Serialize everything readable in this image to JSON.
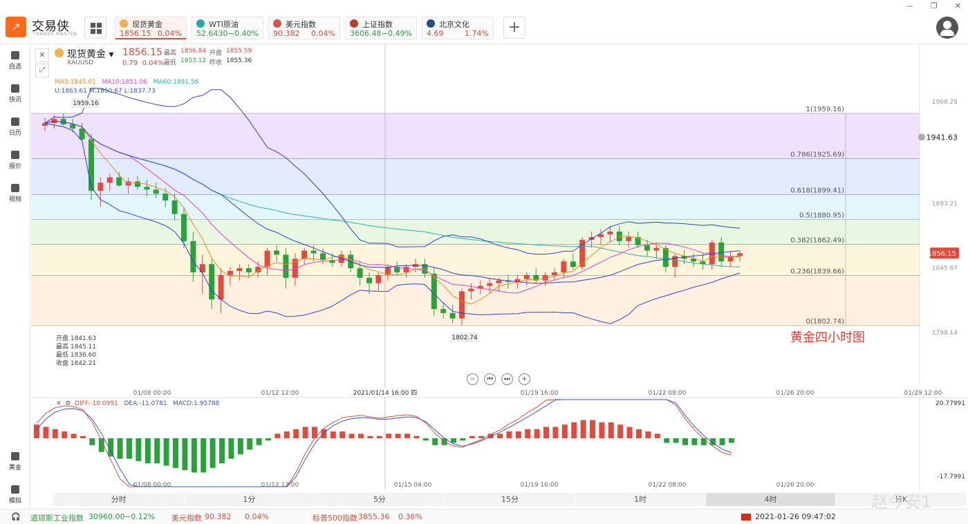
{
  "app": {
    "logo_text": "交易侠",
    "logo_sub": "TRADER MASTER"
  },
  "quotes": [
    {
      "name": "现货黄金",
      "price": "1856.15",
      "change": "0.04%",
      "dir": "up",
      "color": "#f2b24a"
    },
    {
      "name": "WTI原油",
      "price": "52.6430",
      "change": "−0.40%",
      "dir": "dn",
      "color": "#2aa8a0"
    },
    {
      "name": "美元指数",
      "price": "90.382",
      "change": "0.04%",
      "dir": "up",
      "color": "#d9534f"
    },
    {
      "name": "上证指数",
      "price": "3606.48",
      "change": "−0.49%",
      "dir": "dn",
      "color": "#c0392b"
    },
    {
      "name": "北京文化",
      "price": "4.69",
      "change": "1.74%",
      "dir": "up",
      "color": "#2c4a8a"
    }
  ],
  "sidebar": {
    "items": [
      "自选",
      "快讯",
      "日历",
      "报价",
      "视频"
    ],
    "bottom": [
      "黄金",
      "模拟"
    ]
  },
  "header": {
    "name": "现货黄金",
    "symbol": "XAUUSD",
    "last": "1856.15",
    "change": "0.79",
    "change_pct": "0.04%",
    "high_label": "最高",
    "high": "1856.84",
    "open_label": "开盘",
    "open": "1855.59",
    "low_label": "最低",
    "low": "1853.12",
    "prev_label": "昨收",
    "prev": "1855.36"
  },
  "indicators": {
    "ma5": "MA5:1845.01",
    "ma10": "MA10:1851.06",
    "ma60": "MA60:1891.56",
    "boll": "U:1863.61   M:1850.67   L:1837.73"
  },
  "ohlc_box": {
    "open": "开盘 1841.63",
    "high": "最高 1845.11",
    "low": "最低 1836.60",
    "close": "收盘 1842.21"
  },
  "macd": {
    "diff": "DIFF:-10.0991",
    "dea": "DEA:-11.0781",
    "macd": "MACD:1.95788"
  },
  "annotation": "黄金四小时图",
  "periods": [
    "分时",
    "1分",
    "5分",
    "15分",
    "1时",
    "4时",
    "日K"
  ],
  "selected_period": "4时",
  "status": {
    "dji_name": "道琼斯工业指数",
    "dji_price": "30960.00",
    "dji_change": "−0.12%",
    "usd_name": "美元指数",
    "usd_price": "90.382",
    "usd_change": "0.04%",
    "sp_name": "标普500指数",
    "sp_price": "3855.36",
    "sp_change": "0.36%",
    "datetime": "2021-01-26 09:47:02"
  },
  "watermark": "赵今安1",
  "chart_data": {
    "type": "candlestick",
    "y_axis_labels": [
      "1968.28",
      "1941.63",
      "1893.21",
      "1856.15",
      "1845.67",
      "1798.14"
    ],
    "macd_axis_labels": [
      "20.77991",
      "-17.7991"
    ],
    "crosshair_label": "2021/01/14 16:00 四",
    "x_labels": [
      "01/08 00:00",
      "01/12 12:00",
      "01/19 16:00",
      "01/22 08:00",
      "01/26 20:00",
      "01/29 12:00"
    ],
    "macd_x_labels": [
      "01/08 00:00",
      "01/12 12:00",
      "01/15 04:00",
      "01/19 16:00",
      "01/22 08:00",
      "01/26 20:00"
    ],
    "fib_levels": [
      {
        "label": "1(1959.16)",
        "value": 1959.16
      },
      {
        "label": "0.786(1925.69)",
        "value": 1925.69
      },
      {
        "label": "0.618(1899.41)",
        "value": 1899.41
      },
      {
        "label": "0.5(1880.95)",
        "value": 1880.95
      },
      {
        "label": "0.382(1862.49)",
        "value": 1862.49
      },
      {
        "label": "0.236(1839.66)",
        "value": 1839.66
      },
      {
        "label": "0(1802.74)",
        "value": 1802.74
      }
    ],
    "peak_label": "1959.16",
    "trough_label": "1802.74",
    "alert_price": "1941.63",
    "candles": [
      [
        1950,
        1956,
        1946,
        1952
      ],
      [
        1952,
        1958,
        1948,
        1955
      ],
      [
        1955,
        1959,
        1950,
        1951
      ],
      [
        1951,
        1955,
        1945,
        1948
      ],
      [
        1948,
        1952,
        1938,
        1940
      ],
      [
        1940,
        1944,
        1895,
        1902
      ],
      [
        1902,
        1912,
        1890,
        1908
      ],
      [
        1908,
        1915,
        1902,
        1912
      ],
      [
        1912,
        1916,
        1905,
        1906
      ],
      [
        1906,
        1912,
        1900,
        1909
      ],
      [
        1909,
        1913,
        1903,
        1905
      ],
      [
        1905,
        1910,
        1898,
        1903
      ],
      [
        1903,
        1908,
        1897,
        1900
      ],
      [
        1900,
        1904,
        1890,
        1895
      ],
      [
        1895,
        1900,
        1880,
        1885
      ],
      [
        1885,
        1890,
        1860,
        1865
      ],
      [
        1865,
        1872,
        1835,
        1842
      ],
      [
        1842,
        1855,
        1826,
        1848
      ],
      [
        1848,
        1852,
        1815,
        1822
      ],
      [
        1822,
        1845,
        1812,
        1840
      ],
      [
        1840,
        1846,
        1832,
        1843
      ],
      [
        1843,
        1848,
        1836,
        1845
      ],
      [
        1845,
        1848,
        1838,
        1842
      ],
      [
        1842,
        1850,
        1838,
        1846
      ],
      [
        1846,
        1860,
        1840,
        1858
      ],
      [
        1858,
        1862,
        1850,
        1855
      ],
      [
        1855,
        1860,
        1830,
        1838
      ],
      [
        1838,
        1856,
        1832,
        1852
      ],
      [
        1852,
        1860,
        1848,
        1858
      ],
      [
        1858,
        1862,
        1850,
        1856
      ],
      [
        1856,
        1860,
        1848,
        1851
      ],
      [
        1851,
        1856,
        1846,
        1849
      ],
      [
        1849,
        1858,
        1846,
        1855
      ],
      [
        1855,
        1858,
        1842,
        1845
      ],
      [
        1845,
        1850,
        1832,
        1838
      ],
      [
        1838,
        1842,
        1826,
        1834
      ],
      [
        1834,
        1842,
        1828,
        1840
      ],
      [
        1840,
        1848,
        1836,
        1846
      ],
      [
        1846,
        1850,
        1840,
        1842
      ],
      [
        1842,
        1848,
        1838,
        1846
      ],
      [
        1846,
        1852,
        1842,
        1848
      ],
      [
        1848,
        1852,
        1838,
        1841
      ],
      [
        1841,
        1846,
        1810,
        1815
      ],
      [
        1815,
        1820,
        1808,
        1812
      ],
      [
        1812,
        1818,
        1805,
        1808
      ],
      [
        1808,
        1830,
        1803,
        1828
      ],
      [
        1828,
        1834,
        1822,
        1830
      ],
      [
        1830,
        1836,
        1826,
        1832
      ],
      [
        1832,
        1838,
        1826,
        1834
      ],
      [
        1834,
        1838,
        1828,
        1836
      ],
      [
        1836,
        1840,
        1830,
        1835
      ],
      [
        1835,
        1840,
        1830,
        1837
      ],
      [
        1837,
        1842,
        1832,
        1840
      ],
      [
        1840,
        1845,
        1834,
        1836
      ],
      [
        1836,
        1842,
        1832,
        1840
      ],
      [
        1840,
        1845,
        1836,
        1842
      ],
      [
        1842,
        1852,
        1838,
        1850
      ],
      [
        1850,
        1856,
        1844,
        1846
      ],
      [
        1846,
        1868,
        1844,
        1866
      ],
      [
        1866,
        1872,
        1860,
        1868
      ],
      [
        1868,
        1874,
        1862,
        1870
      ],
      [
        1870,
        1876,
        1864,
        1872
      ],
      [
        1872,
        1876,
        1862,
        1865
      ],
      [
        1865,
        1872,
        1860,
        1868
      ],
      [
        1868,
        1872,
        1860,
        1862
      ],
      [
        1862,
        1866,
        1854,
        1858
      ],
      [
        1858,
        1864,
        1852,
        1860
      ],
      [
        1860,
        1862,
        1842,
        1846
      ],
      [
        1846,
        1856,
        1838,
        1854
      ],
      [
        1854,
        1858,
        1848,
        1852
      ],
      [
        1852,
        1856,
        1846,
        1850
      ],
      [
        1850,
        1856,
        1844,
        1848
      ],
      [
        1848,
        1866,
        1844,
        1864
      ],
      [
        1864,
        1868,
        1846,
        1850
      ],
      [
        1850,
        1858,
        1846,
        1854
      ],
      [
        1854,
        1858,
        1850,
        1856
      ]
    ],
    "macd_hist": [
      6,
      5,
      4,
      3,
      2,
      1,
      -3,
      -6,
      -8,
      -9,
      -9,
      -10,
      -11,
      -11,
      -12,
      -13,
      -14,
      -15,
      -15,
      -13,
      -11,
      -9,
      -7,
      -5,
      -3,
      -1,
      2,
      3,
      4,
      5,
      5,
      4,
      3,
      3,
      2,
      2,
      1,
      1,
      2,
      2,
      2,
      1,
      -1,
      -3,
      -3,
      -2,
      -1,
      1,
      1,
      2,
      2,
      3,
      3,
      4,
      4,
      5,
      5,
      6,
      7,
      8,
      8,
      7,
      7,
      6,
      5,
      4,
      3,
      2,
      -2,
      -2,
      -3,
      -3,
      -3,
      -3,
      -3,
      -2
    ],
    "ma_series": [
      "MA5",
      "MA10",
      "MA60",
      "BOLL-U",
      "BOLL-M",
      "BOLL-L"
    ]
  }
}
